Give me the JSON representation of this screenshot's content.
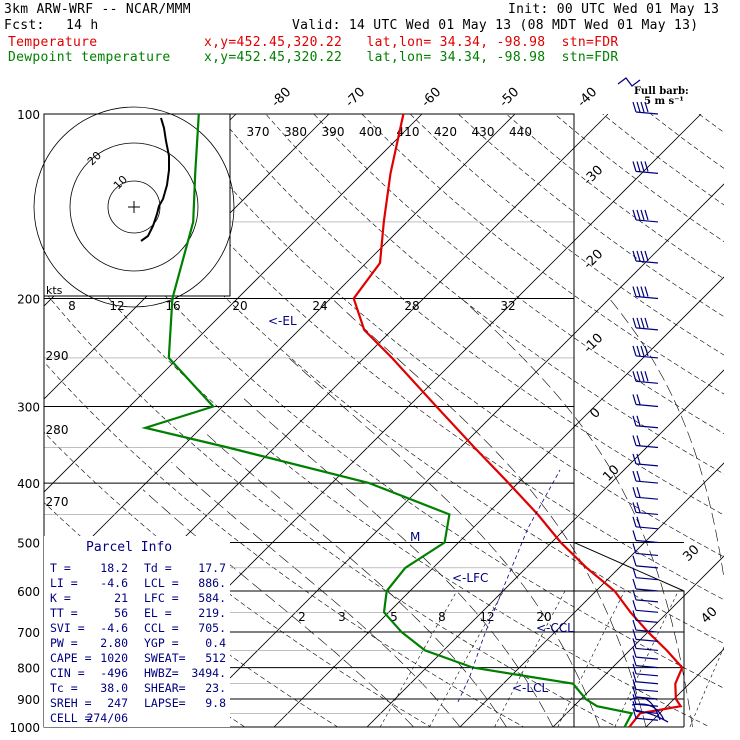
{
  "header": {
    "model": "3km ARW-WRF -- NCAR/MMM",
    "init": "Init: 00 UTC Wed 01 May 13",
    "fcst_label": "Fcst:",
    "fcst_value": "14 h",
    "valid": "Valid: 14 UTC Wed 01 May 13 (08 MDT Wed 01 May 13)",
    "temp_label": "Temperature",
    "temp_info": "x,y=452.45,320.22   lat,lon= 34.34, -98.98  stn=FDR",
    "dew_label": "Dewpoint temperature",
    "dew_info": "x,y=452.45,320.22   lat,lon= 34.34, -98.98  stn=FDR"
  },
  "colors": {
    "temperature": "#e00000",
    "dewpoint": "#008000",
    "barbs": "#000080",
    "parcel": "#000080",
    "text": "#000000"
  },
  "wind": {
    "title": "Full barb:",
    "subtitle": "5 m s⁻¹"
  },
  "hodograph": {
    "kts_label": "kts",
    "speed_ticks": [
      "8",
      "12",
      "16",
      "20",
      "24",
      "28",
      "32"
    ],
    "ring_labels": [
      "20",
      "10"
    ]
  },
  "parcel": {
    "title": "Parcel Info",
    "rows": [
      [
        "T  =",
        "18.2",
        "Td =",
        "17.7"
      ],
      [
        "LI =",
        "-4.6",
        "LCL =",
        "886."
      ],
      [
        "K  =",
        "21",
        "LFC =",
        "584."
      ],
      [
        "TT =",
        "56",
        "EL  =",
        "219."
      ],
      [
        "SVI =",
        "-4.6",
        "CCL =",
        "705."
      ],
      [
        "PW =",
        "2.80",
        "YGP =",
        "0.4"
      ],
      [
        "CAPE =",
        "1020",
        "SWEAT=",
        "512"
      ],
      [
        "CIN =",
        "-496",
        "HWBZ=",
        "3494."
      ],
      [
        "Tc =",
        "38.0",
        "SHEAR=",
        "23."
      ],
      [
        "SREH =",
        "247",
        "LAPSE=",
        "9.8"
      ],
      [
        "CELL =",
        "274/06",
        "",
        ""
      ]
    ]
  },
  "level_markers": {
    "el": "<-EL",
    "lfc": "<-LFC",
    "ccl": "<-CCL",
    "lcl": "<-LCL",
    "m": "M"
  },
  "chart_data": {
    "type": "line",
    "yaxis": {
      "label_values": [
        "100",
        "200",
        "300",
        "400",
        "500",
        "600",
        "700",
        "800",
        "900",
        "1000"
      ]
    },
    "isotherm_labels": [
      "-80",
      "-70",
      "-60",
      "-50",
      "-40",
      "-30",
      "-20",
      "-10",
      "0",
      "10",
      "30",
      "40"
    ],
    "theta_labels": [
      "370",
      "380",
      "390",
      "400",
      "410",
      "420",
      "430",
      "440"
    ],
    "theta_left_labels": [
      "290",
      "280",
      "270"
    ],
    "mixing_ratio_labels": [
      "2",
      "3",
      "5",
      "8",
      "12",
      "20"
    ],
    "series": [
      {
        "name": "Temperature",
        "points": [
          {
            "p": 1000,
            "t": 18.2
          },
          {
            "p": 950,
            "t": 17.9
          },
          {
            "p": 925,
            "t": 21.5
          },
          {
            "p": 900,
            "t": 20.2
          },
          {
            "p": 850,
            "t": 18.5
          },
          {
            "p": 800,
            "t": 17.5
          },
          {
            "p": 750,
            "t": 14.0
          },
          {
            "p": 700,
            "t": 10.0
          },
          {
            "p": 650,
            "t": 6.0
          },
          {
            "p": 600,
            "t": 2.0
          },
          {
            "p": 550,
            "t": -3.5
          },
          {
            "p": 500,
            "t": -9.0
          },
          {
            "p": 450,
            "t": -14.5
          },
          {
            "p": 400,
            "t": -21.0
          },
          {
            "p": 350,
            "t": -28.5
          },
          {
            "p": 300,
            "t": -37.0
          },
          {
            "p": 250,
            "t": -47.0
          },
          {
            "p": 225,
            "t": -53.0
          },
          {
            "p": 200,
            "t": -57.5
          },
          {
            "p": 175,
            "t": -58.5
          },
          {
            "p": 150,
            "t": -62.5
          },
          {
            "p": 125,
            "t": -67.0
          },
          {
            "p": 100,
            "t": -72.0
          }
        ]
      },
      {
        "name": "Dewpoint temperature",
        "points": [
          {
            "p": 1000,
            "t": 17.7
          },
          {
            "p": 950,
            "t": 17.0
          },
          {
            "p": 925,
            "t": 12.5
          },
          {
            "p": 900,
            "t": 10.5
          },
          {
            "p": 850,
            "t": 7.5
          },
          {
            "p": 800,
            "t": -5.0
          },
          {
            "p": 750,
            "t": -12.0
          },
          {
            "p": 700,
            "t": -16.5
          },
          {
            "p": 650,
            "t": -20.5
          },
          {
            "p": 600,
            "t": -22.5
          },
          {
            "p": 550,
            "t": -23.0
          },
          {
            "p": 500,
            "t": -21.5
          },
          {
            "p": 450,
            "t": -24.0
          },
          {
            "p": 400,
            "t": -36.0
          },
          {
            "p": 350,
            "t": -55.0
          },
          {
            "p": 325,
            "t": -66.0
          },
          {
            "p": 300,
            "t": -61.0
          },
          {
            "p": 250,
            "t": -71.0
          },
          {
            "p": 200,
            "t": -77.0
          },
          {
            "p": 150,
            "t": -83.0
          },
          {
            "p": 125,
            "t": -88.0
          },
          {
            "p": 100,
            "t": -94.0
          }
        ]
      }
    ]
  }
}
